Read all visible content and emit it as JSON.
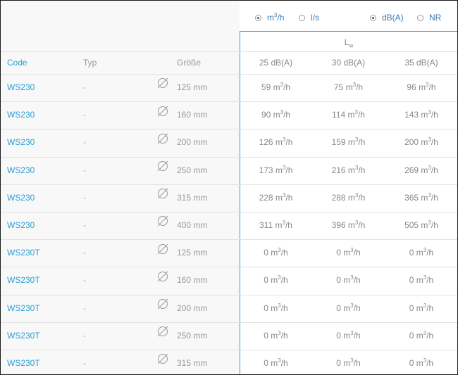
{
  "units": {
    "flow_options": [
      {
        "label": "m³/h",
        "selected": true
      },
      {
        "label": "l/s",
        "selected": false
      }
    ],
    "sound_options": [
      {
        "label": "dB(A)",
        "selected": true
      },
      {
        "label": "NR",
        "selected": false
      }
    ]
  },
  "lw_label": "L",
  "lw_sub": "w",
  "headers": {
    "code": "Code",
    "typ": "Typ",
    "size": "Größe",
    "c1": "25 dB(A)",
    "c2": "30 dB(A)",
    "c3": "35 dB(A)"
  },
  "rows": [
    {
      "code": "WS230",
      "typ": "-",
      "size": "125 mm",
      "v1": "59",
      "v2": "75",
      "v3": "96"
    },
    {
      "code": "WS230",
      "typ": "-",
      "size": "160 mm",
      "v1": "90",
      "v2": "114",
      "v3": "143"
    },
    {
      "code": "WS230",
      "typ": "-",
      "size": "200 mm",
      "v1": "126",
      "v2": "159",
      "v3": "200"
    },
    {
      "code": "WS230",
      "typ": "-",
      "size": "250 mm",
      "v1": "173",
      "v2": "216",
      "v3": "269"
    },
    {
      "code": "WS230",
      "typ": "-",
      "size": "315 mm",
      "v1": "228",
      "v2": "288",
      "v3": "365"
    },
    {
      "code": "WS230",
      "typ": "-",
      "size": "400 mm",
      "v1": "311",
      "v2": "396",
      "v3": "505"
    },
    {
      "code": "WS230T",
      "typ": "-",
      "size": "125 mm",
      "v1": "0",
      "v2": "0",
      "v3": "0"
    },
    {
      "code": "WS230T",
      "typ": "-",
      "size": "160 mm",
      "v1": "0",
      "v2": "0",
      "v3": "0"
    },
    {
      "code": "WS230T",
      "typ": "-",
      "size": "200 mm",
      "v1": "0",
      "v2": "0",
      "v3": "0"
    },
    {
      "code": "WS230T",
      "typ": "-",
      "size": "250 mm",
      "v1": "0",
      "v2": "0",
      "v3": "0"
    },
    {
      "code": "WS230T",
      "typ": "-",
      "size": "315 mm",
      "v1": "0",
      "v2": "0",
      "v3": "0"
    }
  ],
  "flow_unit": "m",
  "flow_unit_sup": "3",
  "flow_unit_suffix": "/h"
}
